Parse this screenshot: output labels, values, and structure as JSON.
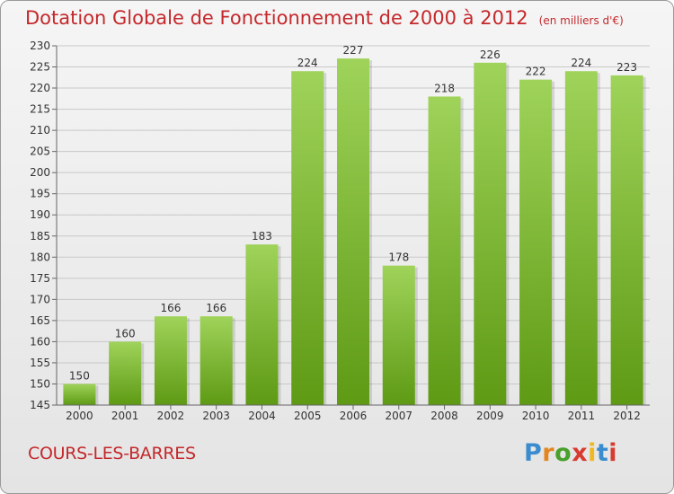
{
  "header": {
    "title": "Dotation Globale de Fonctionnement de 2000 à 2012",
    "unit": "(en milliers d'€)"
  },
  "footer": {
    "commune": "COURS-LES-BARRES",
    "logo_text": "Proxiti"
  },
  "colors": {
    "title": "#c4282b",
    "bar_light": "#9fd35a",
    "bar_dark": "#5e9a14",
    "grid": "#c8c8c8"
  },
  "chart_data": {
    "type": "bar",
    "categories": [
      "2000",
      "2001",
      "2002",
      "2003",
      "2004",
      "2005",
      "2006",
      "2007",
      "2008",
      "2009",
      "2010",
      "2011",
      "2012"
    ],
    "values": [
      150,
      160,
      166,
      166,
      183,
      224,
      227,
      178,
      218,
      226,
      222,
      224,
      223
    ],
    "title": "Dotation Globale de Fonctionnement de 2000 à 2012",
    "subtitle": "(en milliers d'€)",
    "xlabel": "",
    "ylabel": "",
    "ylim": [
      145,
      230
    ],
    "yticks": [
      145,
      150,
      155,
      160,
      165,
      170,
      175,
      180,
      185,
      190,
      195,
      200,
      205,
      210,
      215,
      220,
      225,
      230
    ],
    "grid": true,
    "data_labels": true
  }
}
